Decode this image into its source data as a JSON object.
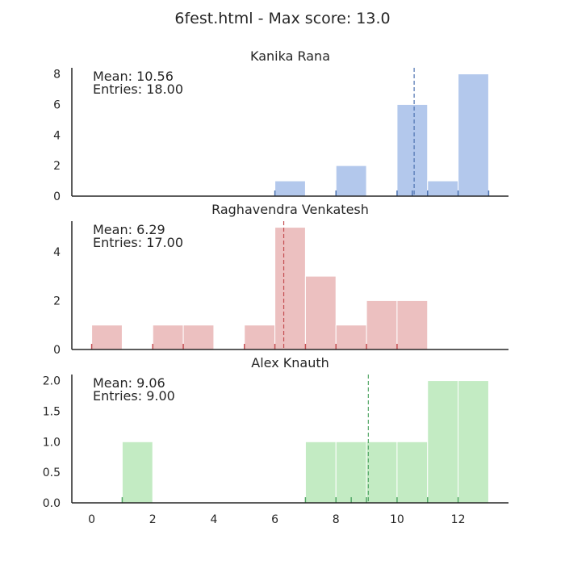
{
  "chart_data": {
    "type": "bar",
    "title": "6fest.html - Max score: 13.0",
    "xlim": [
      -0.65,
      13.65
    ],
    "x_ticks": [
      0,
      2,
      4,
      6,
      8,
      10,
      12
    ],
    "shared_x": true,
    "grid": false,
    "subplots": [
      {
        "name": "Kanika Rana",
        "mean_label": "Mean: 10.56",
        "entries_label": "Entries: 18.00",
        "mean": 10.56,
        "color": "#4c72b0",
        "bar_fill": "#b3c8ec",
        "ylim": [
          0,
          8.4
        ],
        "y_ticks": [
          0,
          2,
          4,
          6,
          8
        ],
        "bins": [
          [
            6,
            7,
            1
          ],
          [
            8,
            9,
            2
          ],
          [
            10,
            11,
            6
          ],
          [
            11,
            12,
            1
          ],
          [
            12,
            13,
            8
          ]
        ],
        "rug": [
          6,
          8,
          10,
          10.5,
          11,
          12,
          13
        ]
      },
      {
        "name": "Raghavendra Venkatesh",
        "mean_label": "Mean: 6.29",
        "entries_label": "Entries: 17.00",
        "mean": 6.29,
        "color": "#c44e52",
        "bar_fill": "#ecc0c0",
        "ylim": [
          0,
          5.25
        ],
        "y_ticks": [
          0,
          2,
          4
        ],
        "bins": [
          [
            0,
            1,
            1
          ],
          [
            2,
            3,
            1
          ],
          [
            3,
            4,
            1
          ],
          [
            5,
            6,
            1
          ],
          [
            6,
            7,
            5
          ],
          [
            7,
            8,
            3
          ],
          [
            8,
            9,
            1
          ],
          [
            9,
            10,
            2
          ],
          [
            10,
            11,
            2
          ]
        ],
        "rug": [
          0,
          2,
          3,
          5,
          6,
          7,
          8,
          9,
          10
        ]
      },
      {
        "name": "Alex Knauth",
        "mean_label": "Mean: 9.06",
        "entries_label": "Entries: 9.00",
        "mean": 9.06,
        "color": "#55a868",
        "bar_fill": "#c3ebc3",
        "ylim": [
          0,
          2.1
        ],
        "y_ticks": [
          0,
          0.5,
          1,
          1.5,
          2
        ],
        "y_tick_labels": [
          "0.0",
          "0.5",
          "1.0",
          "1.5",
          "2.0"
        ],
        "bins": [
          [
            1,
            2,
            1
          ],
          [
            7,
            8,
            1
          ],
          [
            8,
            9,
            1
          ],
          [
            9,
            10,
            1
          ],
          [
            10,
            11,
            1
          ],
          [
            11,
            12,
            2
          ],
          [
            12,
            13,
            2
          ]
        ],
        "rug": [
          1,
          7,
          8,
          8.5,
          9,
          10,
          11,
          12
        ]
      }
    ]
  }
}
